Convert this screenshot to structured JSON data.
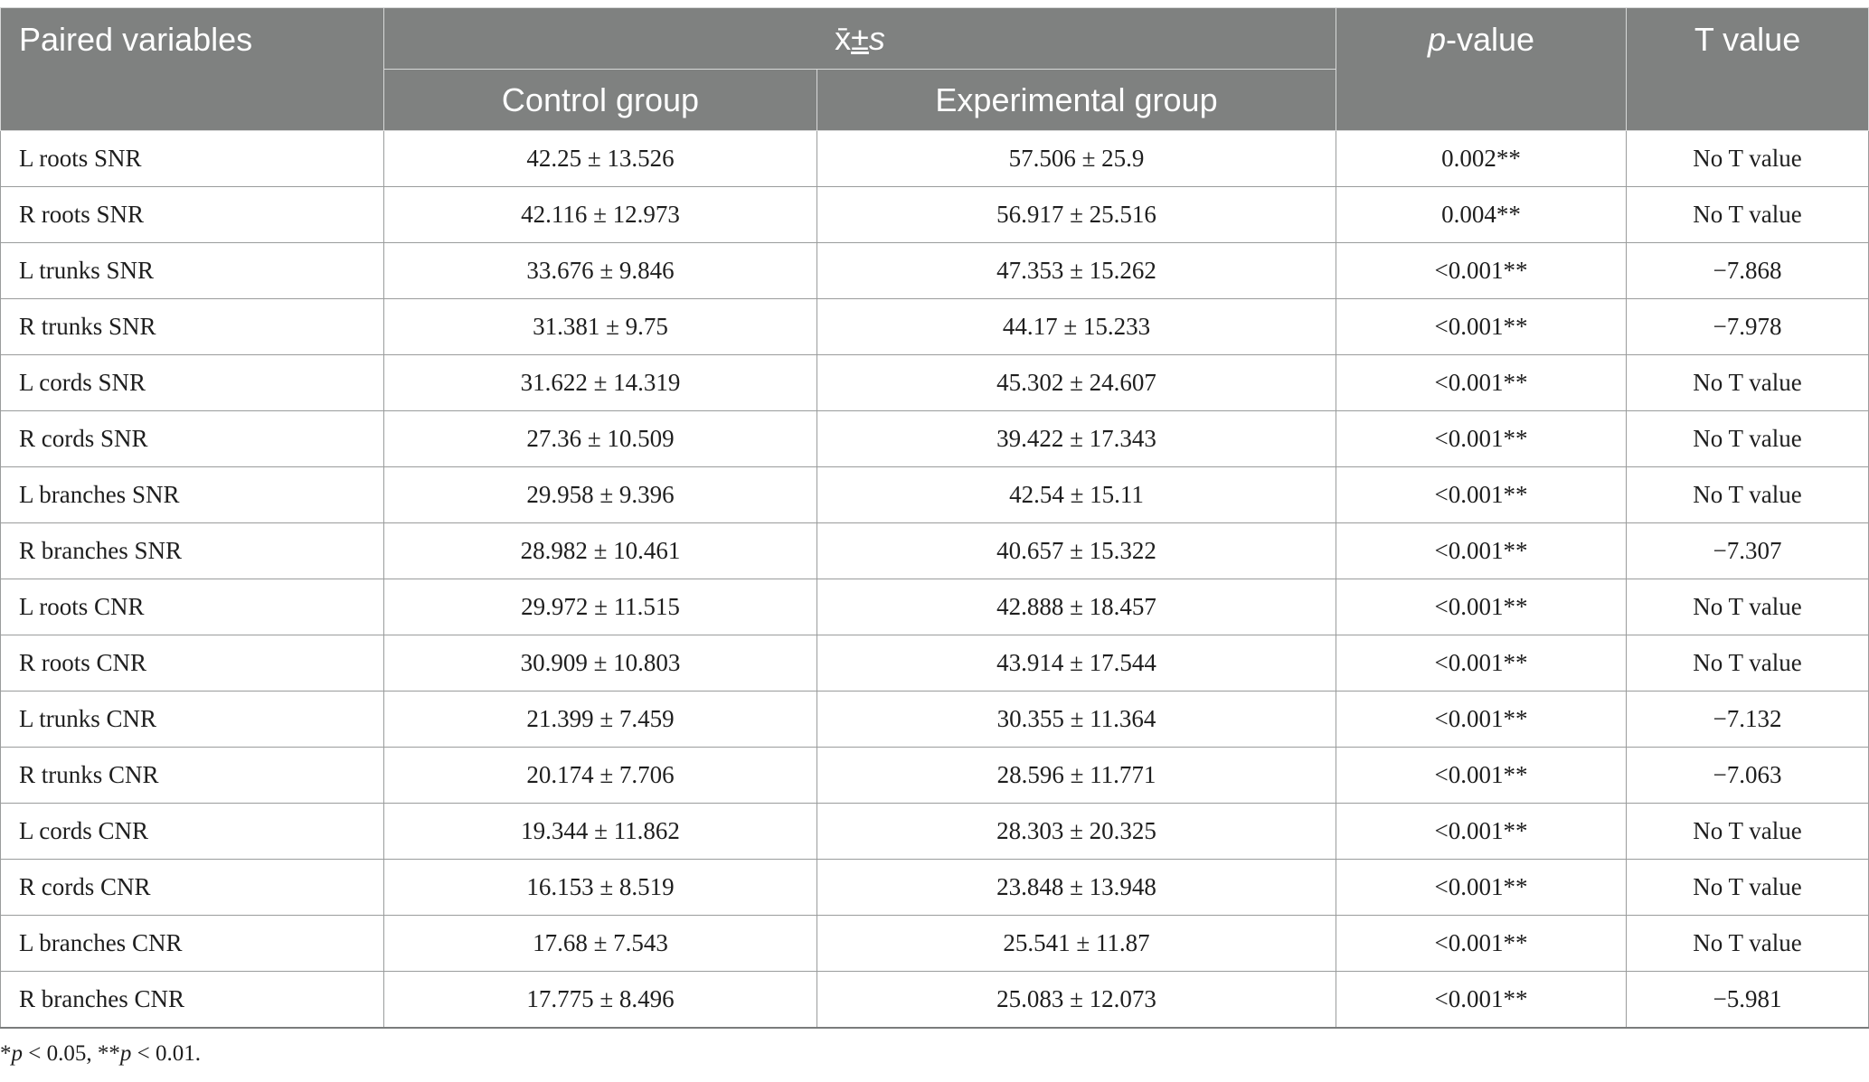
{
  "header": {
    "col1": "Paired variables",
    "mean_sd": {
      "xbar": "x̄",
      "pm": "±",
      "s": "s"
    },
    "control": "Control group",
    "experimental": "Experimental group",
    "pvalue": {
      "p": "p",
      "rest": "-value"
    },
    "tvalue": "T value"
  },
  "rows": [
    {
      "name": "L roots SNR",
      "control": "42.25 ± 13.526",
      "experimental": "57.506 ± 25.9",
      "p": "0.002**",
      "t": "No T value"
    },
    {
      "name": "R roots SNR",
      "control": "42.116 ± 12.973",
      "experimental": "56.917 ± 25.516",
      "p": "0.004**",
      "t": "No T value"
    },
    {
      "name": "L trunks SNR",
      "control": "33.676 ± 9.846",
      "experimental": "47.353 ± 15.262",
      "p": "<0.001**",
      "t": "−7.868"
    },
    {
      "name": "R trunks SNR",
      "control": "31.381 ± 9.75",
      "experimental": "44.17 ± 15.233",
      "p": "<0.001**",
      "t": "−7.978"
    },
    {
      "name": "L cords SNR",
      "control": "31.622 ± 14.319",
      "experimental": "45.302 ± 24.607",
      "p": "<0.001**",
      "t": "No T value"
    },
    {
      "name": "R cords SNR",
      "control": "27.36 ± 10.509",
      "experimental": "39.422 ± 17.343",
      "p": "<0.001**",
      "t": "No T value"
    },
    {
      "name": "L branches SNR",
      "control": "29.958 ± 9.396",
      "experimental": "42.54 ± 15.11",
      "p": "<0.001**",
      "t": "No T value"
    },
    {
      "name": "R branches SNR",
      "control": "28.982 ± 10.461",
      "experimental": "40.657 ± 15.322",
      "p": "<0.001**",
      "t": "−7.307"
    },
    {
      "name": "L roots CNR",
      "control": "29.972 ± 11.515",
      "experimental": "42.888 ± 18.457",
      "p": "<0.001**",
      "t": "No T value"
    },
    {
      "name": "R roots CNR",
      "control": "30.909 ± 10.803",
      "experimental": "43.914 ± 17.544",
      "p": "<0.001**",
      "t": "No T value"
    },
    {
      "name": "L trunks CNR",
      "control": "21.399 ± 7.459",
      "experimental": "30.355 ± 11.364",
      "p": "<0.001**",
      "t": "−7.132"
    },
    {
      "name": "R trunks CNR",
      "control": "20.174 ± 7.706",
      "experimental": "28.596 ± 11.771",
      "p": "<0.001**",
      "t": "−7.063"
    },
    {
      "name": "L cords CNR",
      "control": "19.344 ± 11.862",
      "experimental": "28.303 ± 20.325",
      "p": "<0.001**",
      "t": "No T value"
    },
    {
      "name": "R cords CNR",
      "control": "16.153 ± 8.519",
      "experimental": "23.848 ± 13.948",
      "p": "<0.001**",
      "t": "No T value"
    },
    {
      "name": "L branches CNR",
      "control": "17.68 ± 7.543",
      "experimental": "25.541 ± 11.87",
      "p": "<0.001**",
      "t": "No T value"
    },
    {
      "name": "R branches CNR",
      "control": "17.775 ± 8.496",
      "experimental": "25.083 ± 12.073",
      "p": "<0.001**",
      "t": "−5.981"
    }
  ],
  "footnote": {
    "star1": "*",
    "p1": "p",
    "text1": " < 0.05, ",
    "star2": "**",
    "p2": "p",
    "text2": " < 0.01."
  }
}
